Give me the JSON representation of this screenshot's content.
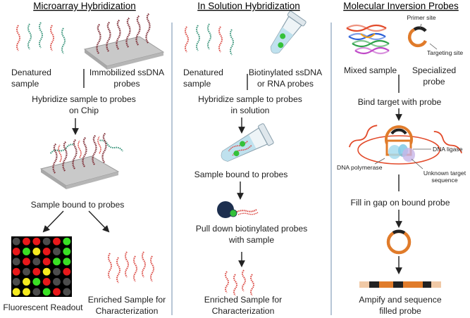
{
  "sections": {
    "microarray": {
      "title": "Microarray Hybridization",
      "denatured": "Denatured\nsample",
      "immobilized": "Immobilized ssDNA\nprobes",
      "step_hybridize": "Hybridize sample to probes\non Chip",
      "step_bound": "Sample bound to probes",
      "readout": "Fluorescent Readout",
      "enriched": "Enriched Sample for\nCharacterization"
    },
    "solution": {
      "title": "In Solution Hybridization",
      "denatured": "Denatured\nsample",
      "biotinylated": "Biotinylated ssDNA\nor RNA probes",
      "step_hybridize": "Hybridize sample to probes\nin solution",
      "step_bound": "Sample bound to probes",
      "step_pulldown": "Pull down biotinylated probes\nwith sample",
      "enriched": "Enriched Sample for\nCharacterization"
    },
    "mip": {
      "title": "Molecular Inversion Probes",
      "primer_site": "Primer site",
      "targeting_site": "Targeting site",
      "mixed": "Mixed sample",
      "specialized": "Specialized\nprobe",
      "step_bind": "Bind target with probe",
      "dna_ligase": "DNA ligase",
      "dna_polymerase": "DNA polymerase",
      "unknown_target": "Unknown target\nsequence",
      "step_fill": "Fill in gap on bound probe",
      "step_amplify": "Ampify and sequence\nfilled probe"
    }
  },
  "colors": {
    "strand_red": "#d9403a",
    "strand_green": "#2f8f74",
    "probe_dark_red": "#7a2730",
    "chip": "#c9c9c9",
    "divider": "#9fb3c8",
    "probe_orange": "#e07b2a",
    "bead_navy": "#1d2f4f",
    "biotin_green": "#34c13a"
  },
  "microarray_grid": [
    [
      "gray",
      "red",
      "red",
      "gray",
      "red",
      "green"
    ],
    [
      "red",
      "green",
      "yellow",
      "red",
      "gray",
      "green"
    ],
    [
      "gray",
      "red",
      "gray",
      "red",
      "green",
      "green"
    ],
    [
      "red",
      "gray",
      "red",
      "yellow",
      "gray",
      "red"
    ],
    [
      "gray",
      "yellow",
      "green",
      "red",
      "gray",
      "gray"
    ],
    [
      "yellow",
      "yellow",
      "gray",
      "green",
      "red",
      "gray"
    ]
  ],
  "grid_colors": {
    "red": "#e8181a",
    "green": "#39e024",
    "yellow": "#f5ea1f",
    "gray": "#4c4c4c"
  }
}
